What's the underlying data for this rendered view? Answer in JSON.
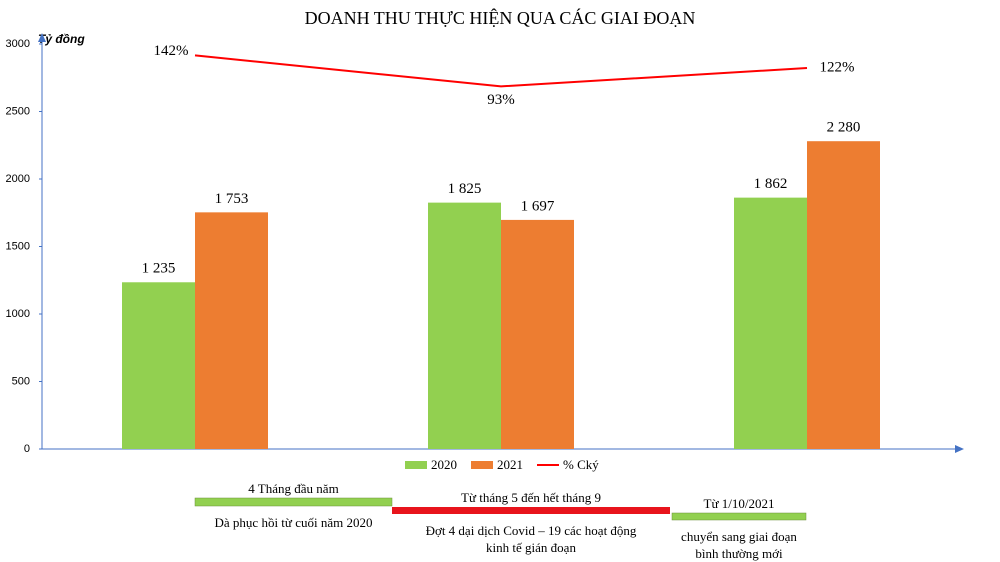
{
  "chart_data": {
    "type": "bar",
    "title": "DOANH THU THỰC HIỆN QUA CÁC GIAI ĐOẠN",
    "y_label": "Tỷ đồng",
    "categories": [
      null,
      null,
      null
    ],
    "series": [
      {
        "name": "2020",
        "color": "#92d050",
        "values": [
          1235,
          1825,
          1862
        ],
        "value_labels": [
          "1 235",
          "1 825",
          "1 862"
        ]
      },
      {
        "name": "2021",
        "color": "#ed7d31",
        "values": [
          1753,
          1697,
          2280
        ],
        "value_labels": [
          "1 753",
          "1 697",
          "2 280"
        ]
      },
      {
        "name": "% Cký",
        "type": "line",
        "axis": "y2",
        "color": "#ff0000",
        "values": [
          142,
          93,
          122
        ],
        "value_labels": [
          "142%",
          "93%",
          "122%"
        ]
      }
    ],
    "ylim": [
      0,
      3000
    ],
    "yticks": [
      0,
      500,
      1000,
      1500,
      2000,
      2500,
      3000
    ],
    "y2lim": [
      -480,
      160
    ],
    "grid": false,
    "legend": "bottom",
    "timeline": [
      {
        "label": "4 Tháng đầu năm",
        "note": [
          "Dà phục hồi từ cuối năm 2020"
        ],
        "color": "#92d050"
      },
      {
        "label": "Từ tháng 5 đến hết tháng 9",
        "note": [
          "Đợt 4 dại dịch Covid – 19 các hoạt động",
          "kinh tế gián đoạn"
        ],
        "color": "#e8141c"
      },
      {
        "label": "Từ 1/10/2021",
        "note": [
          "chuyển sang giai đoạn",
          "bình thường mới"
        ],
        "color": "#92d050"
      }
    ]
  }
}
